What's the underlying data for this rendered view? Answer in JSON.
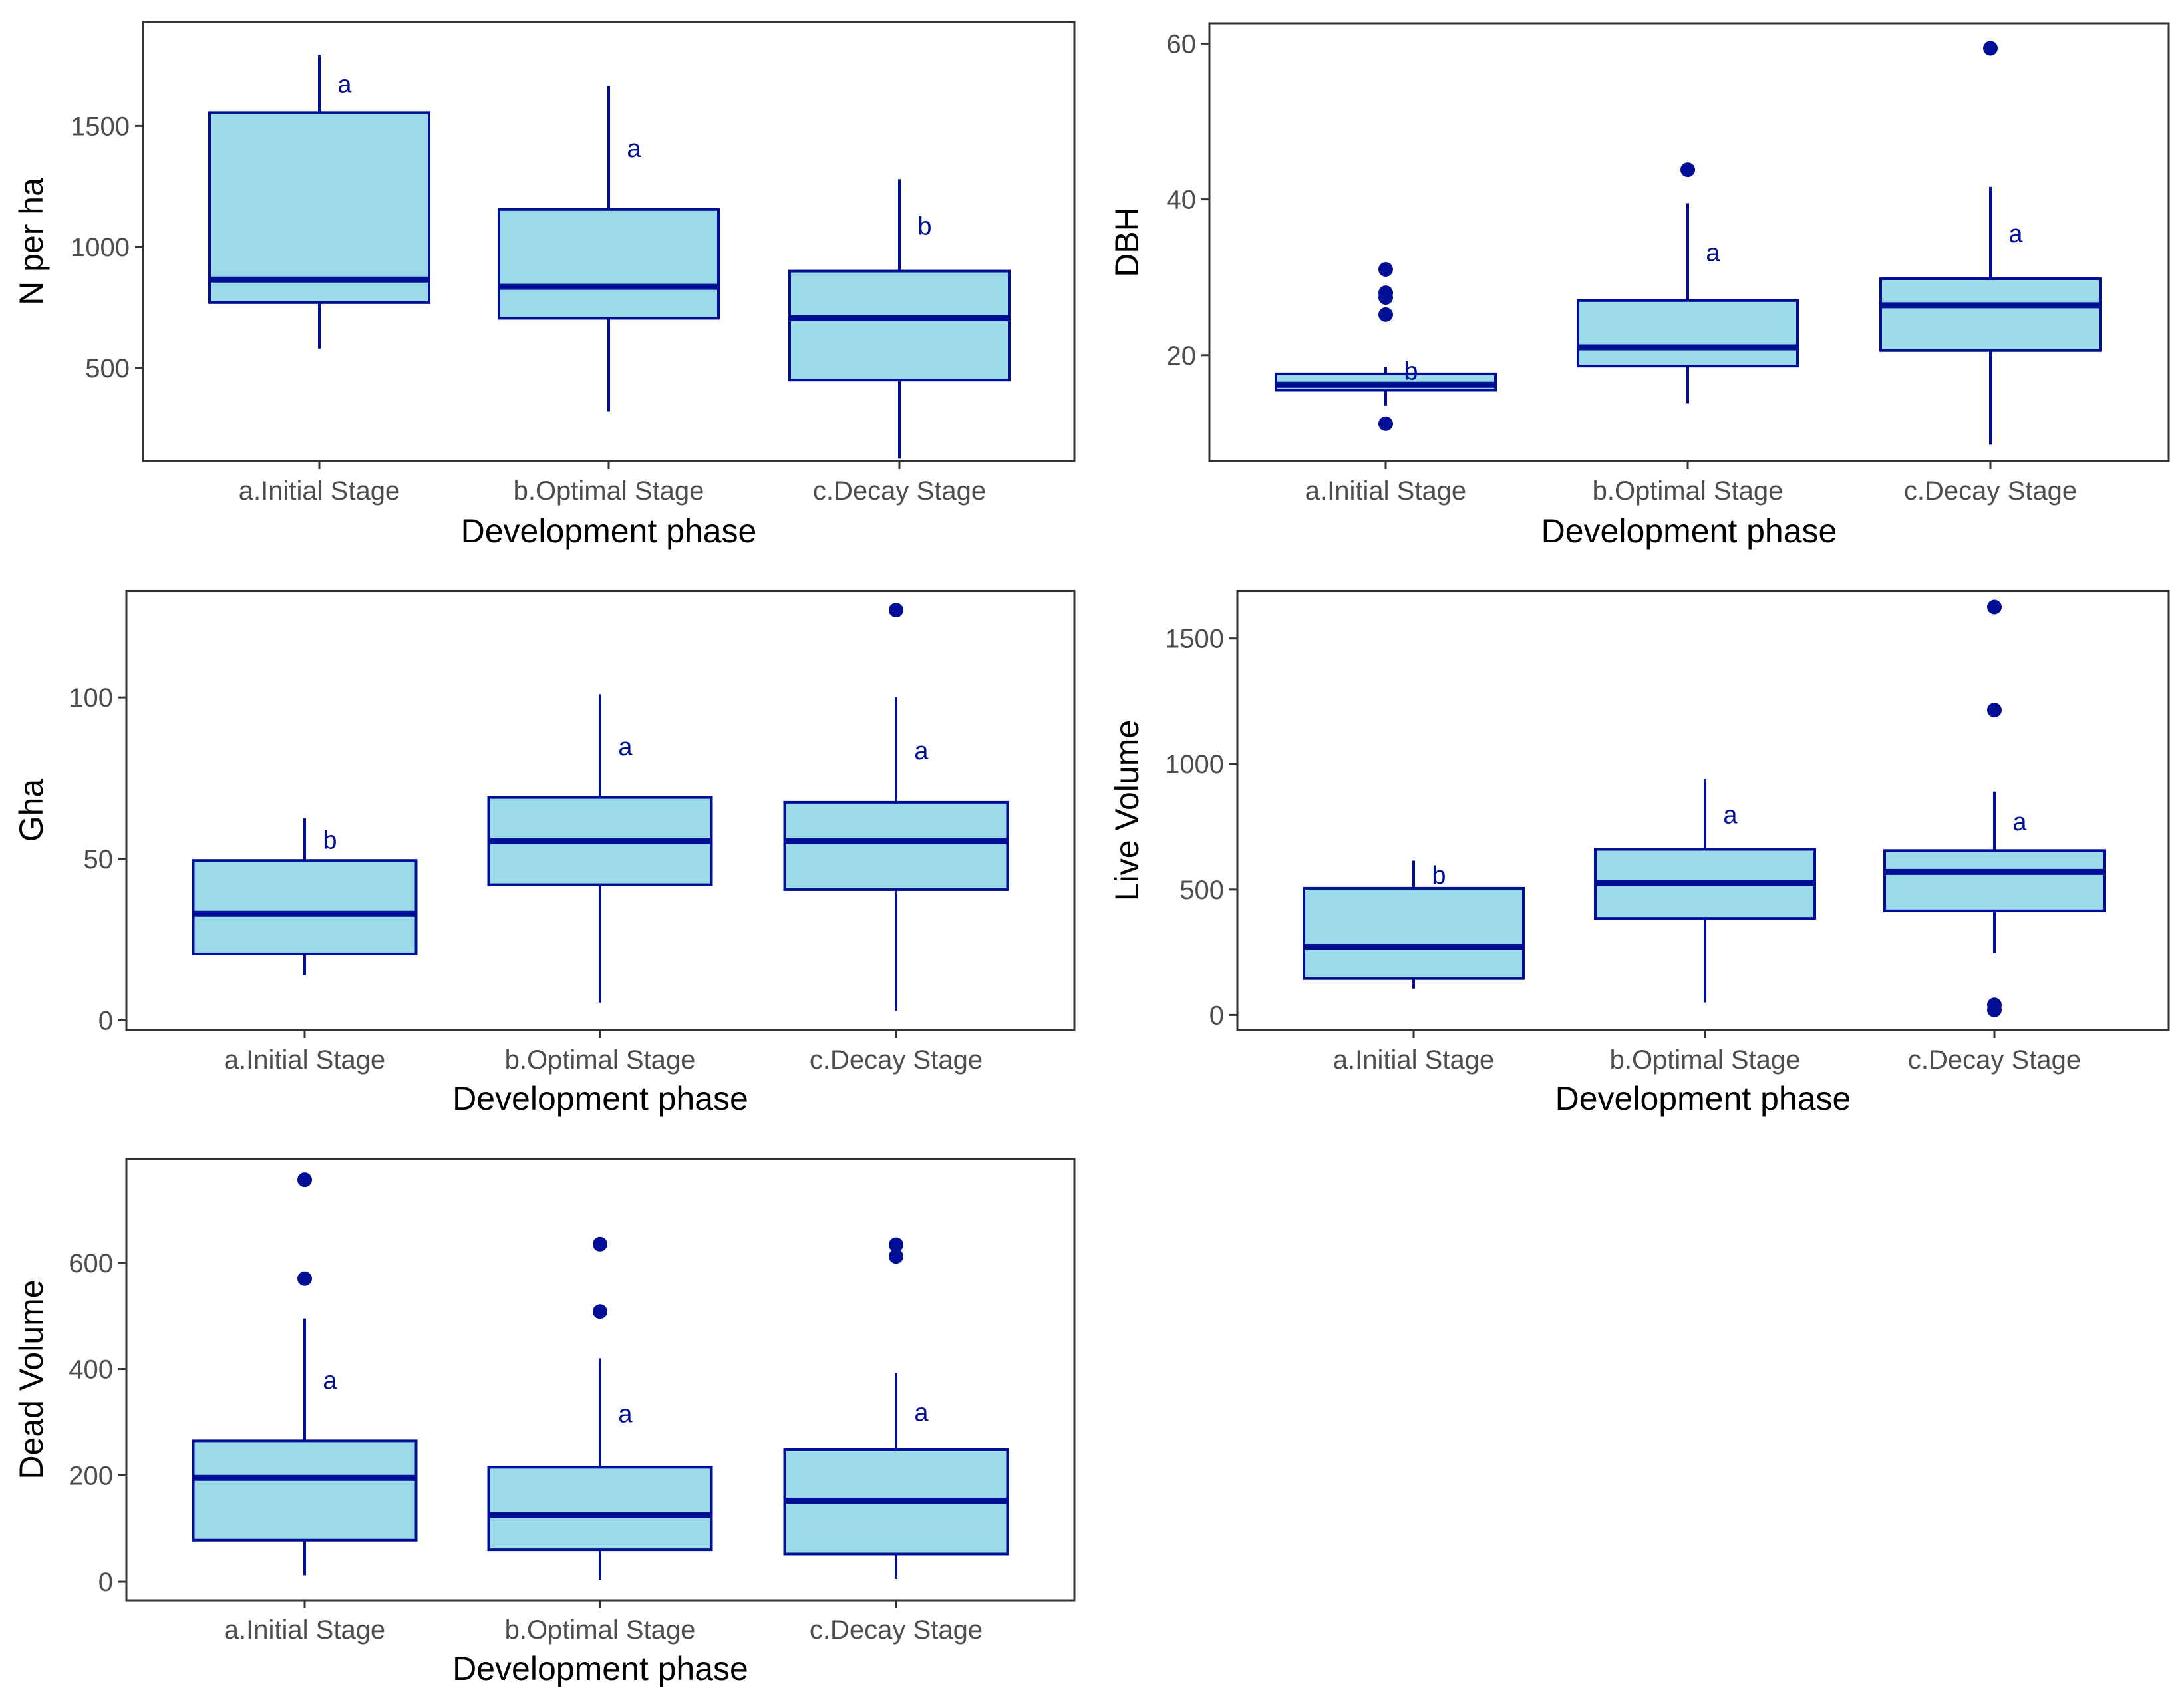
{
  "colors": {
    "fill": "#9bdae8",
    "stroke": "#000f96",
    "frame": "#333333",
    "tick_text": "#4d4d4d"
  },
  "chart_data": [
    {
      "type": "boxplot",
      "ylabel": "N per ha",
      "xlabel": "Development phase",
      "categories": [
        "a.Initial Stage",
        "b.Optimal Stage",
        "c.Decay Stage"
      ],
      "ylim": [
        115,
        1930
      ],
      "yticks": [
        500,
        1000,
        1500
      ],
      "boxes": [
        {
          "min": 580,
          "q1": 770,
          "median": 865,
          "q3": 1555,
          "max": 1795,
          "outliers": [],
          "letter": "a"
        },
        {
          "min": 320,
          "q1": 705,
          "median": 835,
          "q3": 1155,
          "max": 1665,
          "outliers": [],
          "letter": "a"
        },
        {
          "min": 125,
          "q1": 450,
          "median": 705,
          "q3": 900,
          "max": 1280,
          "outliers": [],
          "letter": "b"
        }
      ]
    },
    {
      "type": "boxplot",
      "ylabel": "DBH",
      "xlabel": "Development phase",
      "categories": [
        "a.Initial Stage",
        "b.Optimal Stage",
        "c.Decay Stage"
      ],
      "ylim": [
        6.4,
        62.6
      ],
      "yticks": [
        20,
        40,
        60
      ],
      "boxes": [
        {
          "min": 13.5,
          "q1": 15.5,
          "median": 16.2,
          "q3": 17.6,
          "max": 18.5,
          "outliers": [
            11.2,
            25.2,
            27.4,
            28.0,
            31.0
          ],
          "letter": "b"
        },
        {
          "min": 13.8,
          "q1": 18.6,
          "median": 21.0,
          "q3": 27.0,
          "max": 39.5,
          "outliers": [
            43.8
          ],
          "letter": "a"
        },
        {
          "min": 8.5,
          "q1": 20.6,
          "median": 26.4,
          "q3": 29.8,
          "max": 41.6,
          "outliers": [
            59.4
          ],
          "letter": "a"
        }
      ]
    },
    {
      "type": "boxplot",
      "ylabel": "Gha",
      "xlabel": "Development phase",
      "categories": [
        "a.Initial Stage",
        "b.Optimal Stage",
        "c.Decay Stage"
      ],
      "ylim": [
        -3,
        133
      ],
      "yticks": [
        0,
        50,
        100
      ],
      "boxes": [
        {
          "min": 14,
          "q1": 20.5,
          "median": 33,
          "q3": 49.5,
          "max": 62.5,
          "outliers": [],
          "letter": "b"
        },
        {
          "min": 5.5,
          "q1": 42,
          "median": 55.5,
          "q3": 69,
          "max": 101,
          "outliers": [],
          "letter": "a"
        },
        {
          "min": 3,
          "q1": 40.5,
          "median": 55.5,
          "q3": 67.5,
          "max": 100,
          "outliers": [
            127
          ],
          "letter": "a"
        }
      ]
    },
    {
      "type": "boxplot",
      "ylabel": "Live Volume",
      "xlabel": "Development phase",
      "categories": [
        "a.Initial Stage",
        "b.Optimal Stage",
        "c.Decay Stage"
      ],
      "ylim": [
        -60,
        1690
      ],
      "yticks": [
        0,
        500,
        1000,
        1500
      ],
      "boxes": [
        {
          "min": 105,
          "q1": 145,
          "median": 270,
          "q3": 505,
          "max": 615,
          "outliers": [],
          "letter": "b"
        },
        {
          "min": 50,
          "q1": 385,
          "median": 525,
          "q3": 660,
          "max": 940,
          "outliers": [],
          "letter": "a"
        },
        {
          "min": 245,
          "q1": 415,
          "median": 570,
          "q3": 655,
          "max": 890,
          "outliers": [
            20,
            40,
            1215,
            1625
          ],
          "letter": "a"
        }
      ]
    },
    {
      "type": "boxplot",
      "ylabel": "Dead Volume",
      "xlabel": "Development phase",
      "categories": [
        "a.Initial Stage",
        "b.Optimal Stage",
        "c.Decay Stage"
      ],
      "ylim": [
        -35,
        795
      ],
      "yticks": [
        0,
        200,
        400,
        600
      ],
      "boxes": [
        {
          "min": 12,
          "q1": 78,
          "median": 195,
          "q3": 265,
          "max": 495,
          "outliers": [
            570,
            756
          ],
          "letter": "a"
        },
        {
          "min": 3,
          "q1": 60,
          "median": 125,
          "q3": 215,
          "max": 420,
          "outliers": [
            508,
            635
          ],
          "letter": "a"
        },
        {
          "min": 5,
          "q1": 52,
          "median": 152,
          "q3": 248,
          "max": 392,
          "outliers": [
            612,
            634
          ],
          "letter": "a"
        }
      ]
    }
  ]
}
